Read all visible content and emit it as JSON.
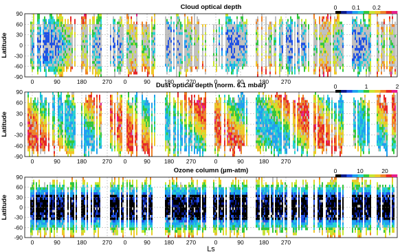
{
  "chart_data": [
    {
      "type": "heatmap",
      "title": "Cloud optical depth",
      "ylabel": "Latitude",
      "yticks": [
        "90",
        "60",
        "30",
        "0",
        "-30",
        "-60",
        "-90"
      ],
      "xticks": [
        "0",
        "90",
        "180",
        "270",
        "0",
        "90",
        "180",
        "270",
        "0",
        "90",
        "180",
        "270"
      ],
      "ylim": [
        -90,
        90
      ],
      "colorbar": {
        "ticks": [
          "0",
          "0.1",
          "0.2"
        ],
        "range": [
          0,
          0.3
        ]
      },
      "grid": true
    },
    {
      "type": "heatmap",
      "title": "Dust optical depth (norm. 6.1 mbar)",
      "ylabel": "Latitude",
      "yticks": [
        "90",
        "60",
        "30",
        "0",
        "-30",
        "-60",
        "-90"
      ],
      "xticks": [
        "0",
        "90",
        "180",
        "270",
        "0",
        "90",
        "180",
        "270",
        "0",
        "90",
        "180",
        "270"
      ],
      "ylim": [
        -90,
        90
      ],
      "colorbar": {
        "ticks": [
          "0",
          "1",
          "2"
        ],
        "range": [
          0,
          2
        ]
      },
      "grid": true
    },
    {
      "type": "heatmap",
      "title": "Ozone column (µm-atm)",
      "ylabel": "Latitude",
      "xlabel": "Ls",
      "yticks": [
        "90",
        "60",
        "30",
        "0",
        "-30",
        "-60",
        "-90"
      ],
      "xticks": [
        "0",
        "90",
        "180",
        "270",
        "0",
        "90",
        "180",
        "270",
        "0",
        "90",
        "180",
        "270"
      ],
      "ylim": [
        -90,
        90
      ],
      "colorbar": {
        "ticks": [
          "0",
          "10",
          "20"
        ],
        "range": [
          0,
          25
        ]
      },
      "grid": true
    }
  ],
  "colors": {
    "no_data_gray": "#c0c0c0",
    "colormap": [
      "#000000",
      "#0a1a8c",
      "#1e50e6",
      "#1ea0f0",
      "#28d2d2",
      "#32c83c",
      "#c8e632",
      "#f0c828",
      "#f08228",
      "#e62828",
      "#e61e8c",
      "#d2d2d2"
    ]
  }
}
